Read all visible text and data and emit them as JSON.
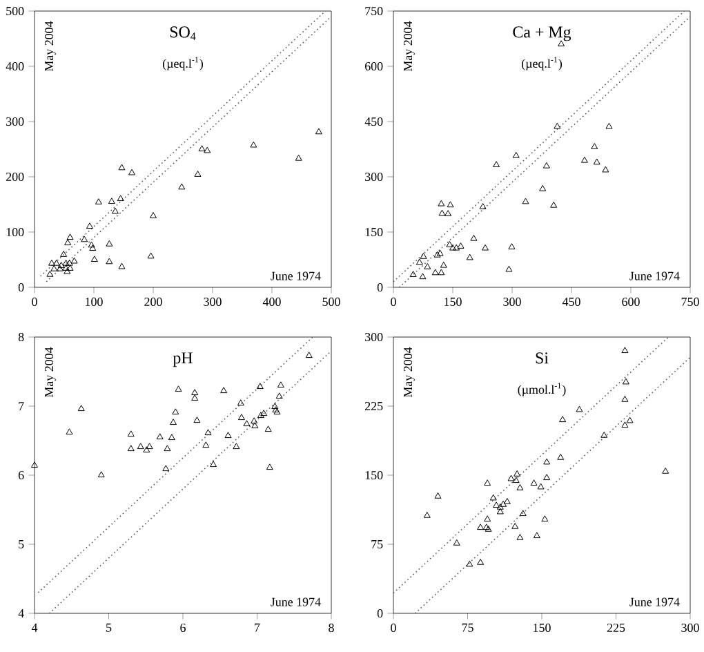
{
  "chart_data": [
    {
      "type": "scatter",
      "title": "SO$_{4}$",
      "subtitle": "(µeq.l$^{-1}$)",
      "xlabel": "June 1974",
      "ylabel": "May 2004",
      "xlim": [
        0,
        500
      ],
      "ylim": [
        0,
        500
      ],
      "xticks": [
        0,
        100,
        200,
        300,
        400,
        500
      ],
      "yticks": [
        0,
        100,
        200,
        300,
        400,
        500
      ],
      "series": [
        {
          "color": "#000000",
          "marker": "triangle",
          "x": [
            108,
            130,
            145,
            136,
            200,
            93,
            60,
            56,
            84,
            96,
            98,
            126,
            101,
            126,
            147,
            196,
            49,
            29,
            37,
            45,
            53,
            59,
            67,
            33,
            43,
            53,
            60,
            26,
            55,
            147,
            164,
            248,
            275,
            282,
            291,
            369,
            445,
            479
          ],
          "values": [
            154,
            155,
            160,
            137,
            129,
            110,
            90,
            80,
            86,
            76,
            70,
            78,
            50,
            46,
            37,
            56,
            59,
            43,
            43,
            39,
            43,
            43,
            47,
            33,
            33,
            34,
            34,
            23,
            28,
            216,
            207,
            181,
            204,
            250,
            247,
            257,
            233,
            281
          ]
        },
        {
          "type": "line",
          "color": "#555555",
          "line_style": "dotted",
          "x": [
            10,
            490
          ],
          "values": [
            20,
            500
          ]
        },
        {
          "type": "line",
          "color": "#555555",
          "line_style": "dotted",
          "x": [
            20,
            500
          ],
          "values": [
            10,
            490
          ]
        }
      ]
    },
    {
      "type": "scatter",
      "title": "Ca + Mg",
      "subtitle": "(µeq.l$^{-1}$)",
      "xlabel": "June 1974",
      "ylabel": "May 2004",
      "xlim": [
        0,
        750
      ],
      "ylim": [
        0,
        750
      ],
      "xticks": [
        0,
        150,
        300,
        450,
        600,
        750
      ],
      "yticks": [
        0,
        150,
        300,
        450,
        600,
        750
      ],
      "series": [
        {
          "color": "#000000",
          "marker": "triangle",
          "x": [
            121,
            144,
            123,
            138,
            226,
            334,
            377,
            203,
            232,
            299,
            193,
            292,
            142,
            150,
            159,
            170,
            118,
            111,
            76,
            66,
            86,
            127,
            106,
            121,
            50,
            74,
            424,
            545,
            414,
            310,
            260,
            387,
            508,
            483,
            514,
            536,
            405
          ],
          "values": [
            226,
            223,
            200,
            199,
            218,
            232,
            267,
            132,
            106,
            109,
            80,
            48,
            115,
            106,
            106,
            111,
            91,
            87,
            83,
            67,
            55,
            59,
            39,
            39,
            34,
            28,
            660,
            436,
            436,
            357,
            332,
            329,
            381,
            344,
            339,
            318,
            222
          ]
        },
        {
          "type": "line",
          "color": "#555555",
          "line_style": "dotted",
          "x": [
            0,
            735
          ],
          "values": [
            15,
            750
          ]
        },
        {
          "type": "line",
          "color": "#555555",
          "line_style": "dotted",
          "x": [
            15,
            750
          ],
          "values": [
            0,
            735
          ]
        }
      ]
    },
    {
      "type": "scatter",
      "title": "pH",
      "xlabel": "June 1974",
      "ylabel": "May 2004",
      "xlim": [
        4,
        8
      ],
      "ylim": [
        4,
        8
      ],
      "xticks": [
        4,
        5,
        6,
        7,
        8
      ],
      "yticks": [
        4,
        5,
        6,
        7,
        8
      ],
      "series": [
        {
          "color": "#000000",
          "marker": "triangle",
          "x": [
            4.0,
            4.47,
            4.63,
            4.9,
            5.3,
            5.3,
            5.43,
            5.51,
            5.55,
            5.69,
            5.79,
            5.77,
            5.85,
            5.87,
            5.9,
            5.94,
            6.16,
            6.16,
            6.19,
            6.31,
            6.34,
            6.41,
            6.55,
            6.61,
            6.72,
            6.78,
            6.79,
            6.86,
            6.96,
            6.97,
            7.04,
            7.05,
            7.09,
            7.15,
            7.17,
            7.24,
            7.25,
            7.27,
            7.3,
            7.32,
            7.7
          ],
          "values": [
            6.14,
            6.62,
            6.96,
            6.0,
            6.59,
            6.38,
            6.41,
            6.36,
            6.41,
            6.55,
            6.38,
            6.09,
            6.54,
            6.76,
            6.91,
            7.24,
            7.19,
            7.11,
            6.79,
            6.43,
            6.61,
            6.15,
            7.22,
            6.57,
            6.41,
            7.04,
            6.83,
            6.74,
            6.78,
            6.71,
            7.28,
            6.86,
            6.89,
            6.66,
            6.11,
            6.99,
            6.94,
            6.91,
            7.14,
            7.3,
            7.73
          ]
        },
        {
          "type": "line",
          "color": "#555555",
          "line_style": "dotted",
          "x": [
            4.05,
            7.75
          ],
          "values": [
            4.3,
            8
          ]
        },
        {
          "type": "line",
          "color": "#555555",
          "line_style": "dotted",
          "x": [
            4.2,
            8
          ],
          "values": [
            4.0,
            7.8
          ]
        }
      ]
    },
    {
      "type": "scatter",
      "title": "Si",
      "subtitle": "(µmol.l$^{-1}$)",
      "xlabel": "June 1974",
      "ylabel": "May 2004",
      "xlim": [
        0,
        300
      ],
      "ylim": [
        0,
        300
      ],
      "xticks": [
        0,
        75,
        150,
        225,
        300
      ],
      "yticks": [
        0,
        75,
        150,
        225,
        300
      ],
      "series": [
        {
          "color": "#000000",
          "marker": "triangle",
          "x": [
            34,
            45,
            64,
            77,
            88,
            88,
            94,
            96,
            95,
            95,
            101,
            104,
            108,
            108,
            111,
            115,
            119,
            124,
            125,
            128,
            123,
            128,
            131,
            142,
            145,
            149,
            153,
            155,
            155,
            169,
            171,
            188,
            213,
            234,
            235,
            234,
            234,
            239,
            275
          ],
          "values": [
            106,
            127,
            76,
            53,
            55,
            93,
            93,
            91,
            102,
            141,
            125,
            117,
            115,
            110,
            118,
            121,
            146,
            144,
            151,
            136,
            94,
            82,
            108,
            141,
            84,
            137,
            102,
            164,
            147,
            169,
            210,
            221,
            193,
            285,
            251,
            232,
            204,
            209,
            154
          ]
        },
        {
          "type": "line",
          "color": "#555555",
          "line_style": "dotted",
          "x": [
            0,
            278
          ],
          "values": [
            22,
            300
          ]
        },
        {
          "type": "line",
          "color": "#555555",
          "line_style": "dotted",
          "x": [
            22,
            300
          ],
          "values": [
            0,
            278
          ]
        }
      ]
    }
  ]
}
